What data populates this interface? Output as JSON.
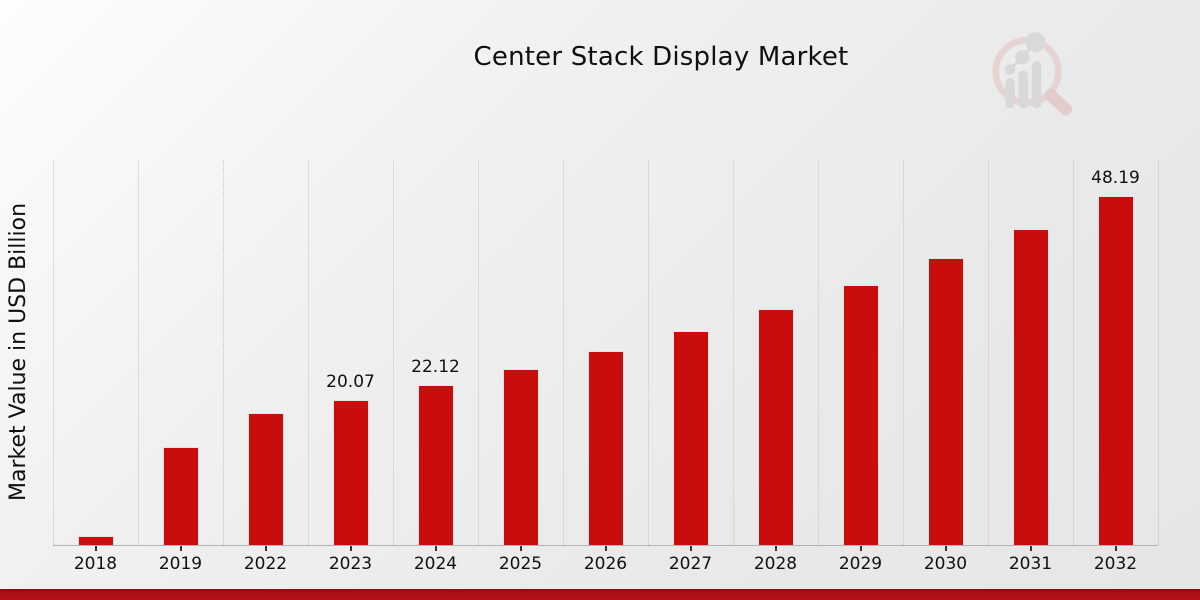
{
  "title": "Center Stack Display Market",
  "watermark": {
    "icon": "mrfr-magnifier-barchart-logo"
  },
  "colors": {
    "bar": "#c90d0d",
    "footer_band": "#ad1015",
    "gridline": "#c5c5c5",
    "axis_line": "#b3b3b3",
    "background_top": "#fdfdfd",
    "background_bottom": "#e6e6e6"
  },
  "chart_data": {
    "type": "bar",
    "title": "Center Stack Display Market",
    "xlabel": "",
    "ylabel": "Market Value in USD Billion",
    "categories": [
      "2018",
      "2019",
      "2022",
      "2023",
      "2024",
      "2025",
      "2026",
      "2027",
      "2028",
      "2029",
      "2030",
      "2031",
      "2032"
    ],
    "values": [
      1.3,
      13.6,
      18.21,
      20.07,
      22.12,
      24.38,
      26.87,
      29.62,
      32.65,
      35.99,
      39.67,
      43.72,
      48.19
    ],
    "bar_labels": [
      "",
      "",
      "",
      "20.07",
      "22.12",
      "",
      "",
      "",
      "",
      "",
      "",
      "",
      "48.19"
    ],
    "ylim": [
      0,
      53.2
    ],
    "y_axis_ticks_visible": false,
    "grid": "vertical-dotted",
    "legend": "none",
    "bar_color": "#c90d0d"
  }
}
